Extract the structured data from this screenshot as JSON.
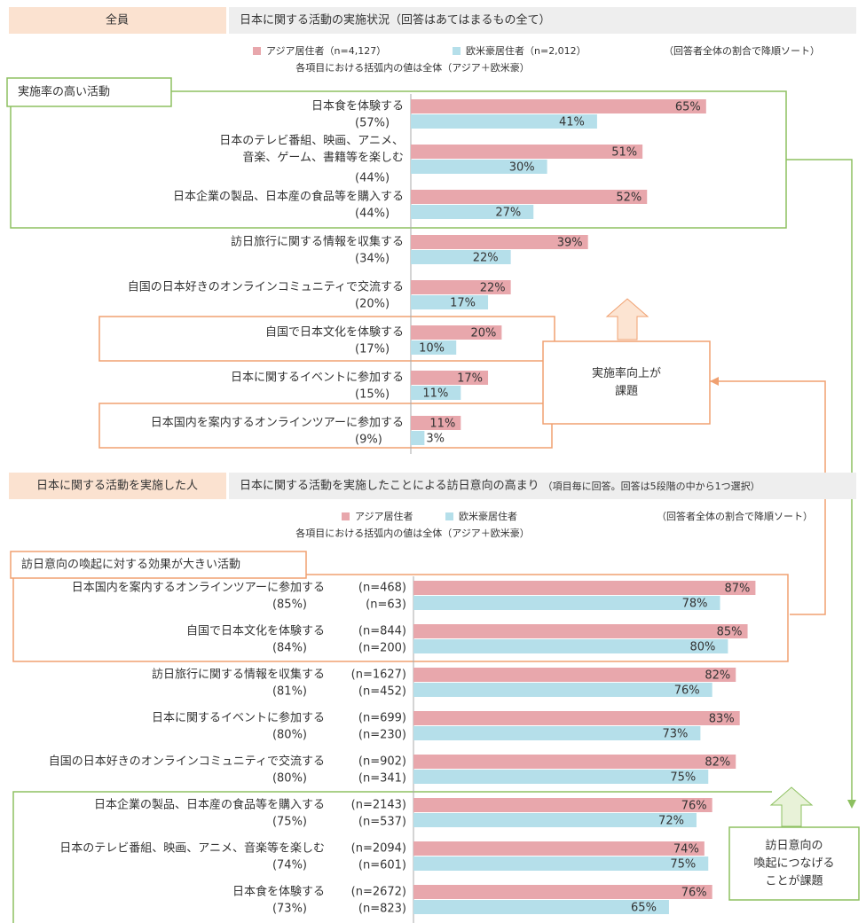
{
  "chart_data": [
    {
      "type": "bar",
      "segment": "全員",
      "title": "日本に関する活動の実施状況（回答はあてはまるもの全て）",
      "note": "（回答者全体の割合で降順ソート）",
      "subtitle": "各項目における括弧内の値は全体（アジア＋欧米豪）",
      "group_label": "実施率の高い活動",
      "callout": [
        "実施率向上が",
        "課題"
      ],
      "categories": [
        [
          "日本食を体験する"
        ],
        [
          "日本のテレビ番組、映画、アニメ、",
          "音楽、ゲーム、書籍等を楽しむ"
        ],
        [
          "日本企業の製品、日本産の食品等を購入する"
        ],
        [
          "訪日旅行に関する情報を収集する"
        ],
        [
          "自国の日本好きのオンラインコミュニティで交流する"
        ],
        [
          "自国で日本文化を体験する"
        ],
        [
          "日本に関するイベントに参加する"
        ],
        [
          "日本国内を案内するオンラインツアーに参加する"
        ]
      ],
      "total_labels": [
        "(57%)",
        "(44%)",
        "(44%)",
        "(34%)",
        "(20%)",
        "(17%)",
        "(15%)",
        "(9%)"
      ],
      "series": [
        {
          "name": "アジア居住者（n=4,127）",
          "color": "#e8a7ac",
          "values": [
            65,
            51,
            52,
            39,
            22,
            20,
            17,
            11
          ],
          "value_labels": [
            "65%",
            "51%",
            "52%",
            "39%",
            "22%",
            "20%",
            "17%",
            "11%"
          ]
        },
        {
          "name": "欧米豪居住者（n=2,012）",
          "color": "#b5dfea",
          "values": [
            41,
            30,
            27,
            22,
            17,
            10,
            11,
            3
          ],
          "value_labels": [
            "41%",
            "30%",
            "27%",
            "22%",
            "17%",
            "10%",
            "11%",
            "3%"
          ]
        }
      ]
    },
    {
      "type": "bar",
      "segment": "日本に関する活動を実施した人",
      "title": "日本に関する活動を実施したことによる訪日意向の高まり",
      "title_note": "（項目毎に回答。回答は5段階の中から1つ選択）",
      "note": "（回答者全体の割合で降順ソート）",
      "subtitle": "各項目における括弧内の値は全体（アジア＋欧米豪）",
      "group_label": "訪日意向の喚起に対する効果が大きい活動",
      "callout": [
        "訪日意向の",
        "喚起につなげる",
        "ことが課題"
      ],
      "categories": [
        "日本国内を案内するオンラインツアーに参加する",
        "自国で日本文化を体験する",
        "訪日旅行に関する情報を収集する",
        "日本に関するイベントに参加する",
        "自国の日本好きのオンラインコミュニティで交流する",
        "日本企業の製品、日本産の食品等を購入する",
        "日本のテレビ番組、映画、アニメ、音楽等を楽しむ",
        "日本食を体験する"
      ],
      "total_labels": [
        "(85%)",
        "(84%)",
        "(81%)",
        "(80%)",
        "(80%)",
        "(75%)",
        "(74%)",
        "(73%)"
      ],
      "n_labels": [
        [
          "(n=468)",
          "(n=63)"
        ],
        [
          "(n=844)",
          "(n=200)"
        ],
        [
          "(n=1627)",
          "(n=452)"
        ],
        [
          "(n=699)",
          "(n=230)"
        ],
        [
          "(n=902)",
          "(n=341)"
        ],
        [
          "(n=2143)",
          "(n=537)"
        ],
        [
          "(n=2094)",
          "(n=601)"
        ],
        [
          "(n=2672)",
          "(n=823)"
        ]
      ],
      "series": [
        {
          "name": "アジア居住者",
          "color": "#e8a7ac",
          "values": [
            87,
            85,
            82,
            83,
            82,
            76,
            74,
            76
          ],
          "value_labels": [
            "87%",
            "85%",
            "82%",
            "83%",
            "82%",
            "76%",
            "74%",
            "76%"
          ]
        },
        {
          "name": "欧米豪居住者",
          "color": "#b5dfea",
          "values": [
            78,
            80,
            76,
            73,
            75,
            72,
            75,
            65
          ],
          "value_labels": [
            "78%",
            "80%",
            "76%",
            "73%",
            "75%",
            "72%",
            "75%",
            "65%"
          ]
        }
      ]
    }
  ]
}
